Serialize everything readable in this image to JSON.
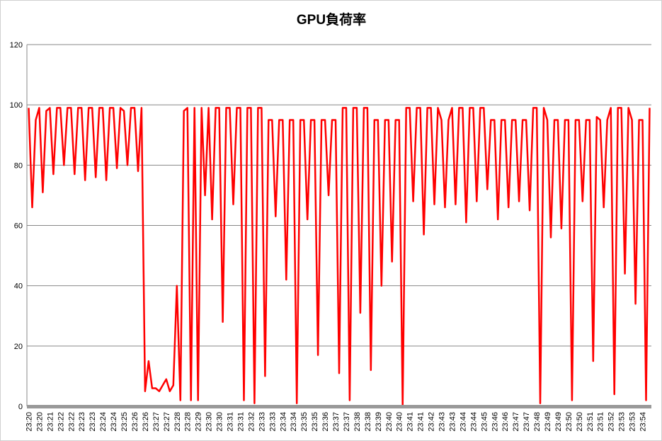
{
  "chart_data": {
    "type": "line",
    "title": "GPU負荷率",
    "categories": [
      "23:20",
      null,
      null,
      "23:20",
      null,
      null,
      "23:21",
      null,
      null,
      "23:22",
      null,
      null,
      "23:22",
      null,
      null,
      "23:23",
      null,
      null,
      "23:23",
      null,
      null,
      "23:24",
      null,
      null,
      "23:24",
      null,
      null,
      "23:25",
      null,
      null,
      "23:26",
      null,
      null,
      "23:26",
      null,
      null,
      "23:27",
      null,
      null,
      "23:27",
      null,
      null,
      "23:28",
      null,
      null,
      "23:28",
      null,
      null,
      "23:29",
      null,
      null,
      "23:30",
      null,
      null,
      "23:30",
      null,
      null,
      "23:31",
      null,
      null,
      "23:31",
      null,
      null,
      "23:32",
      null,
      null,
      "23:33",
      null,
      null,
      "23:33",
      null,
      null,
      "23:34",
      null,
      null,
      "23:34",
      null,
      null,
      "23:35",
      null,
      null,
      "23:35",
      null,
      null,
      "23:36",
      null,
      null,
      "23:37",
      null,
      null,
      "23:37",
      null,
      null,
      "23:38",
      null,
      null,
      "23:38",
      null,
      null,
      "23:39",
      null,
      null,
      "23:40",
      null,
      null,
      "23:40",
      null,
      null,
      "23:41",
      null,
      null,
      "23:41",
      null,
      null,
      "23:42",
      null,
      null,
      "23:43",
      null,
      null,
      "23:43",
      null,
      null,
      "23:44",
      null,
      null,
      "23:44",
      null,
      null,
      "23:45",
      null,
      null,
      "23:46",
      null,
      null,
      "23:46",
      null,
      null,
      "23:47",
      null,
      null,
      "23:47",
      null,
      null,
      "23:48",
      null,
      null,
      "23:49",
      null,
      null,
      "23:49",
      null,
      null,
      "23:50",
      null,
      null,
      "23:50",
      null,
      null,
      "23:51",
      null,
      null,
      "23:51",
      null,
      null,
      "23:52",
      null,
      null,
      "23:53",
      null,
      null,
      "23:53",
      null,
      null,
      "23:54",
      null,
      null
    ],
    "series": [
      {
        "name": "GPU負荷率",
        "color": "#ff0000",
        "values": [
          99,
          66,
          95,
          99,
          71,
          98,
          99,
          77,
          99,
          99,
          80,
          99,
          99,
          77,
          99,
          99,
          75,
          99,
          99,
          76,
          99,
          99,
          75,
          99,
          99,
          79,
          99,
          98,
          80,
          99,
          99,
          78,
          99,
          5,
          15,
          6,
          6,
          5,
          7,
          9,
          5,
          7,
          40,
          2,
          98,
          99,
          2,
          99,
          2,
          99,
          70,
          99,
          62,
          99,
          99,
          28,
          99,
          99,
          67,
          99,
          99,
          2,
          99,
          99,
          1,
          99,
          99,
          10,
          95,
          95,
          63,
          95,
          95,
          42,
          95,
          95,
          1,
          95,
          95,
          62,
          95,
          95,
          17,
          95,
          95,
          70,
          95,
          95,
          11,
          99,
          99,
          2,
          99,
          99,
          31,
          99,
          99,
          12,
          95,
          95,
          40,
          95,
          95,
          48,
          95,
          95,
          0,
          99,
          99,
          68,
          99,
          99,
          57,
          99,
          99,
          67,
          99,
          95,
          66,
          95,
          99,
          67,
          99,
          99,
          61,
          99,
          99,
          68,
          99,
          99,
          72,
          95,
          95,
          62,
          95,
          95,
          66,
          95,
          95,
          68,
          95,
          95,
          65,
          99,
          99,
          1,
          99,
          95,
          56,
          95,
          95,
          59,
          95,
          95,
          2,
          95,
          95,
          68,
          95,
          95,
          15,
          96,
          95,
          66,
          95,
          99,
          4,
          99,
          99,
          44,
          99,
          95,
          34,
          95,
          95,
          2,
          99
        ]
      }
    ],
    "ylim": [
      0,
      120
    ],
    "yticks": [
      0,
      20,
      40,
      60,
      80,
      100,
      120
    ],
    "grid": true
  }
}
